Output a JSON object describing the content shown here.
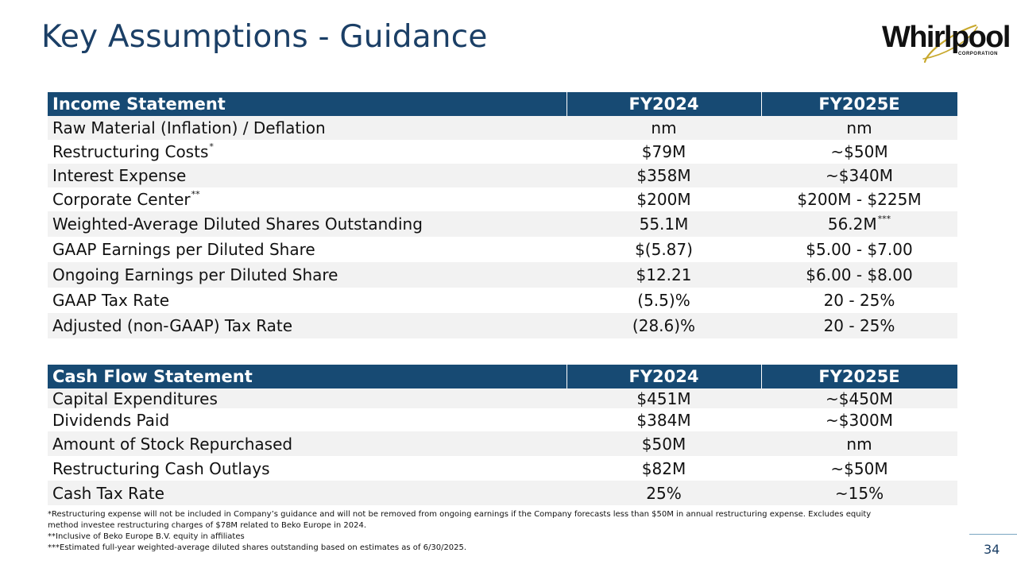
{
  "slide": {
    "title": "Key Assumptions - Guidance",
    "page_number": "34"
  },
  "logo": {
    "wordmark": "Whirlpool",
    "subtitle": "CORPORATION",
    "swoosh_color": "#c8a82c"
  },
  "income_statement": {
    "header": [
      "Income Statement",
      "FY2024",
      "FY2025E"
    ],
    "rows": [
      {
        "label": "Raw Material (Inflation) / Deflation",
        "label_sup": "",
        "fy2024": "nm",
        "fy2025e": "nm",
        "fy2025e_sup": ""
      },
      {
        "label": "Restructuring Costs",
        "label_sup": "*",
        "fy2024": "$79M",
        "fy2025e": "~$50M",
        "fy2025e_sup": ""
      },
      {
        "label": "Interest Expense",
        "label_sup": "",
        "fy2024": "$358M",
        "fy2025e": "~$340M",
        "fy2025e_sup": ""
      },
      {
        "label": "Corporate Center",
        "label_sup": "**",
        "fy2024": "$200M",
        "fy2025e": "$200M - $225M",
        "fy2025e_sup": ""
      },
      {
        "label": "Weighted-Average Diluted Shares Outstanding",
        "label_sup": "",
        "fy2024": "55.1M",
        "fy2025e": "56.2M",
        "fy2025e_sup": "***"
      },
      {
        "label": "GAAP Earnings per Diluted Share",
        "label_sup": "",
        "fy2024": "$(5.87)",
        "fy2025e": "$5.00 - $7.00",
        "fy2025e_sup": ""
      },
      {
        "label": "Ongoing Earnings per Diluted Share",
        "label_sup": "",
        "fy2024": "$12.21",
        "fy2025e": "$6.00 - $8.00",
        "fy2025e_sup": ""
      },
      {
        "label": "GAAP Tax Rate",
        "label_sup": "",
        "fy2024": "(5.5)%",
        "fy2025e": "20 - 25%",
        "fy2025e_sup": ""
      },
      {
        "label": "Adjusted (non-GAAP) Tax Rate",
        "label_sup": "",
        "fy2024": "(28.6)%",
        "fy2025e": "20 - 25%",
        "fy2025e_sup": ""
      }
    ]
  },
  "cash_flow_statement": {
    "header": [
      "Cash Flow Statement",
      "FY2024",
      "FY2025E"
    ],
    "rows": [
      {
        "label": "Capital Expenditures",
        "fy2024": "$451M",
        "fy2025e": "~$450M"
      },
      {
        "label": "Dividends Paid",
        "fy2024": "$384M",
        "fy2025e": "~$300M"
      },
      {
        "label": "Amount of Stock Repurchased",
        "fy2024": "$50M",
        "fy2025e": "nm"
      },
      {
        "label": "Restructuring Cash Outlays",
        "fy2024": "$82M",
        "fy2025e": "~$50M"
      },
      {
        "label": "Cash Tax Rate",
        "fy2024": "25%",
        "fy2025e": "~15%"
      }
    ]
  },
  "footnotes": [
    "*Restructuring expense will not be included in Company’s guidance and will not be removed from ongoing earnings if the Company forecasts less than $50M in annual restructuring expense. Excludes equity method investee restructuring charges of $78M related to Beko Europe in 2024.",
    "**Inclusive of Beko Europe B.V. equity in affiliates",
    "***Estimated full-year weighted-average diluted shares outstanding based on estimates as of 6/30/2025."
  ],
  "colors": {
    "title": "#1b3f66",
    "table_header_bg": "#174a73",
    "row_shade": "#f2f2f2"
  }
}
